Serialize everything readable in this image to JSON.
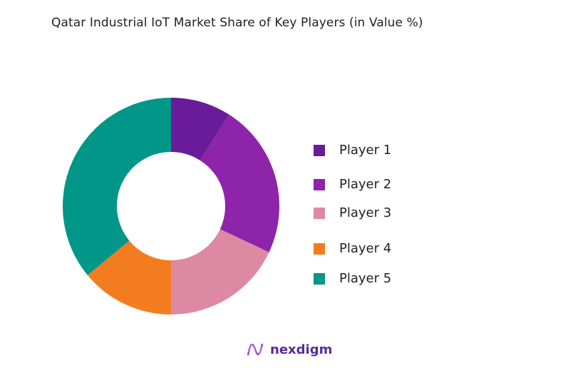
{
  "chart_data": {
    "type": "pie",
    "title": "Qatar Industrial IoT Market Share of Key Players (in Value %)",
    "donut": true,
    "categories": [
      "Player 1",
      "Player 2",
      "Player 3",
      "Player 4",
      "Player 5"
    ],
    "values": [
      9,
      23,
      18,
      14,
      36
    ],
    "colors": [
      "#6a1b9a",
      "#8e24aa",
      "#de89a3",
      "#f47c20",
      "#009688"
    ],
    "legend_position": "right"
  },
  "logo": {
    "text": "nexdigm"
  }
}
